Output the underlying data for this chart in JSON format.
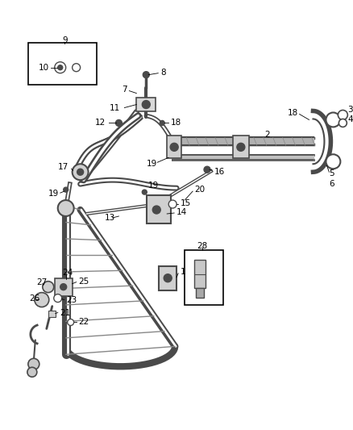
{
  "bg_color": "#ffffff",
  "part_color": "#4a4a4a",
  "label_color": "#000000",
  "fig_width": 4.38,
  "fig_height": 5.33,
  "dpi": 100
}
